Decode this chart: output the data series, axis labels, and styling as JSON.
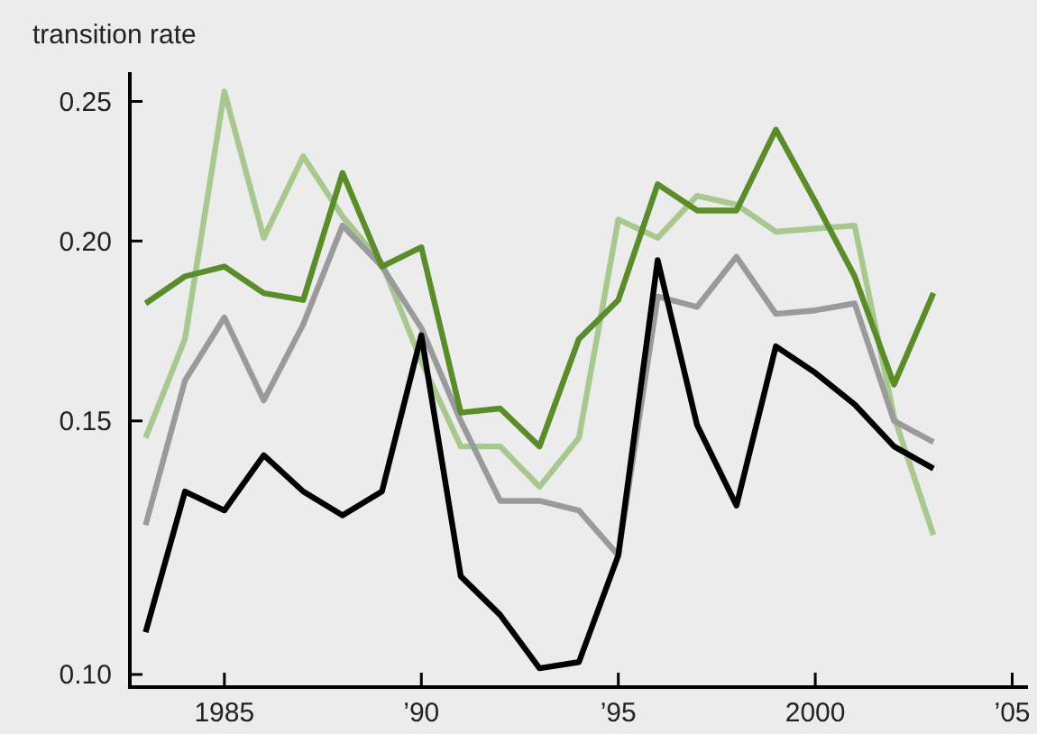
{
  "chart_data": {
    "type": "line",
    "ylabel": "transition rate",
    "log": "y",
    "grid": false,
    "marker": "none",
    "line_style": "solid",
    "x": [
      1983,
      1984,
      1985,
      1986,
      1987,
      1988,
      1989,
      1990,
      1991,
      1992,
      1993,
      1994,
      1995,
      1996,
      1997,
      1998,
      1999,
      2000,
      2001,
      2002,
      2003
    ],
    "xlim": [
      1982.6,
      2005.4
    ],
    "xticks": [
      {
        "value": 1985,
        "label": "1985"
      },
      {
        "value": 1990,
        "label": "’90"
      },
      {
        "value": 1995,
        "label": "’95"
      },
      {
        "value": 2000,
        "label": "2000"
      },
      {
        "value": 2005,
        "label": "’05"
      }
    ],
    "ylim": [
      0.098,
      0.262
    ],
    "yticks": [
      {
        "value": 0.1,
        "label": "0.10"
      },
      0.15,
      {
        "value": 0.2,
        "label": "0.20"
      },
      0.25
    ],
    "series": [
      {
        "color": "#a8c890",
        "values": [
          0.146,
          0.171,
          0.254,
          0.201,
          0.229,
          0.208,
          0.193,
          0.165,
          0.144,
          0.144,
          0.135,
          0.146,
          0.207,
          0.201,
          0.215,
          0.212,
          0.203,
          0.204,
          0.205,
          0.151,
          0.125
        ]
      },
      {
        "color": "#9a9a9c",
        "values": [
          0.127,
          0.16,
          0.177,
          0.155,
          0.175,
          0.205,
          0.192,
          0.174,
          0.15,
          0.132,
          0.132,
          0.13,
          0.121,
          0.183,
          0.18,
          0.195,
          0.178,
          0.179,
          0.181,
          0.15,
          0.145
        ]
      },
      {
        "color": "#5a8c2a",
        "values": [
          0.181,
          0.189,
          0.192,
          0.184,
          0.182,
          0.223,
          0.192,
          0.198,
          0.152,
          0.153,
          0.144,
          0.171,
          0.182,
          0.219,
          0.21,
          0.21,
          0.239,
          0.213,
          0.189,
          0.159,
          0.184
        ]
      },
      {
        "color": "#000000",
        "values": [
          0.107,
          0.134,
          0.13,
          0.142,
          0.134,
          0.129,
          0.134,
          0.172,
          0.117,
          0.11,
          0.101,
          0.102,
          0.121,
          0.194,
          0.149,
          0.131,
          0.169,
          0.162,
          0.154,
          0.144,
          0.139
        ]
      }
    ]
  }
}
